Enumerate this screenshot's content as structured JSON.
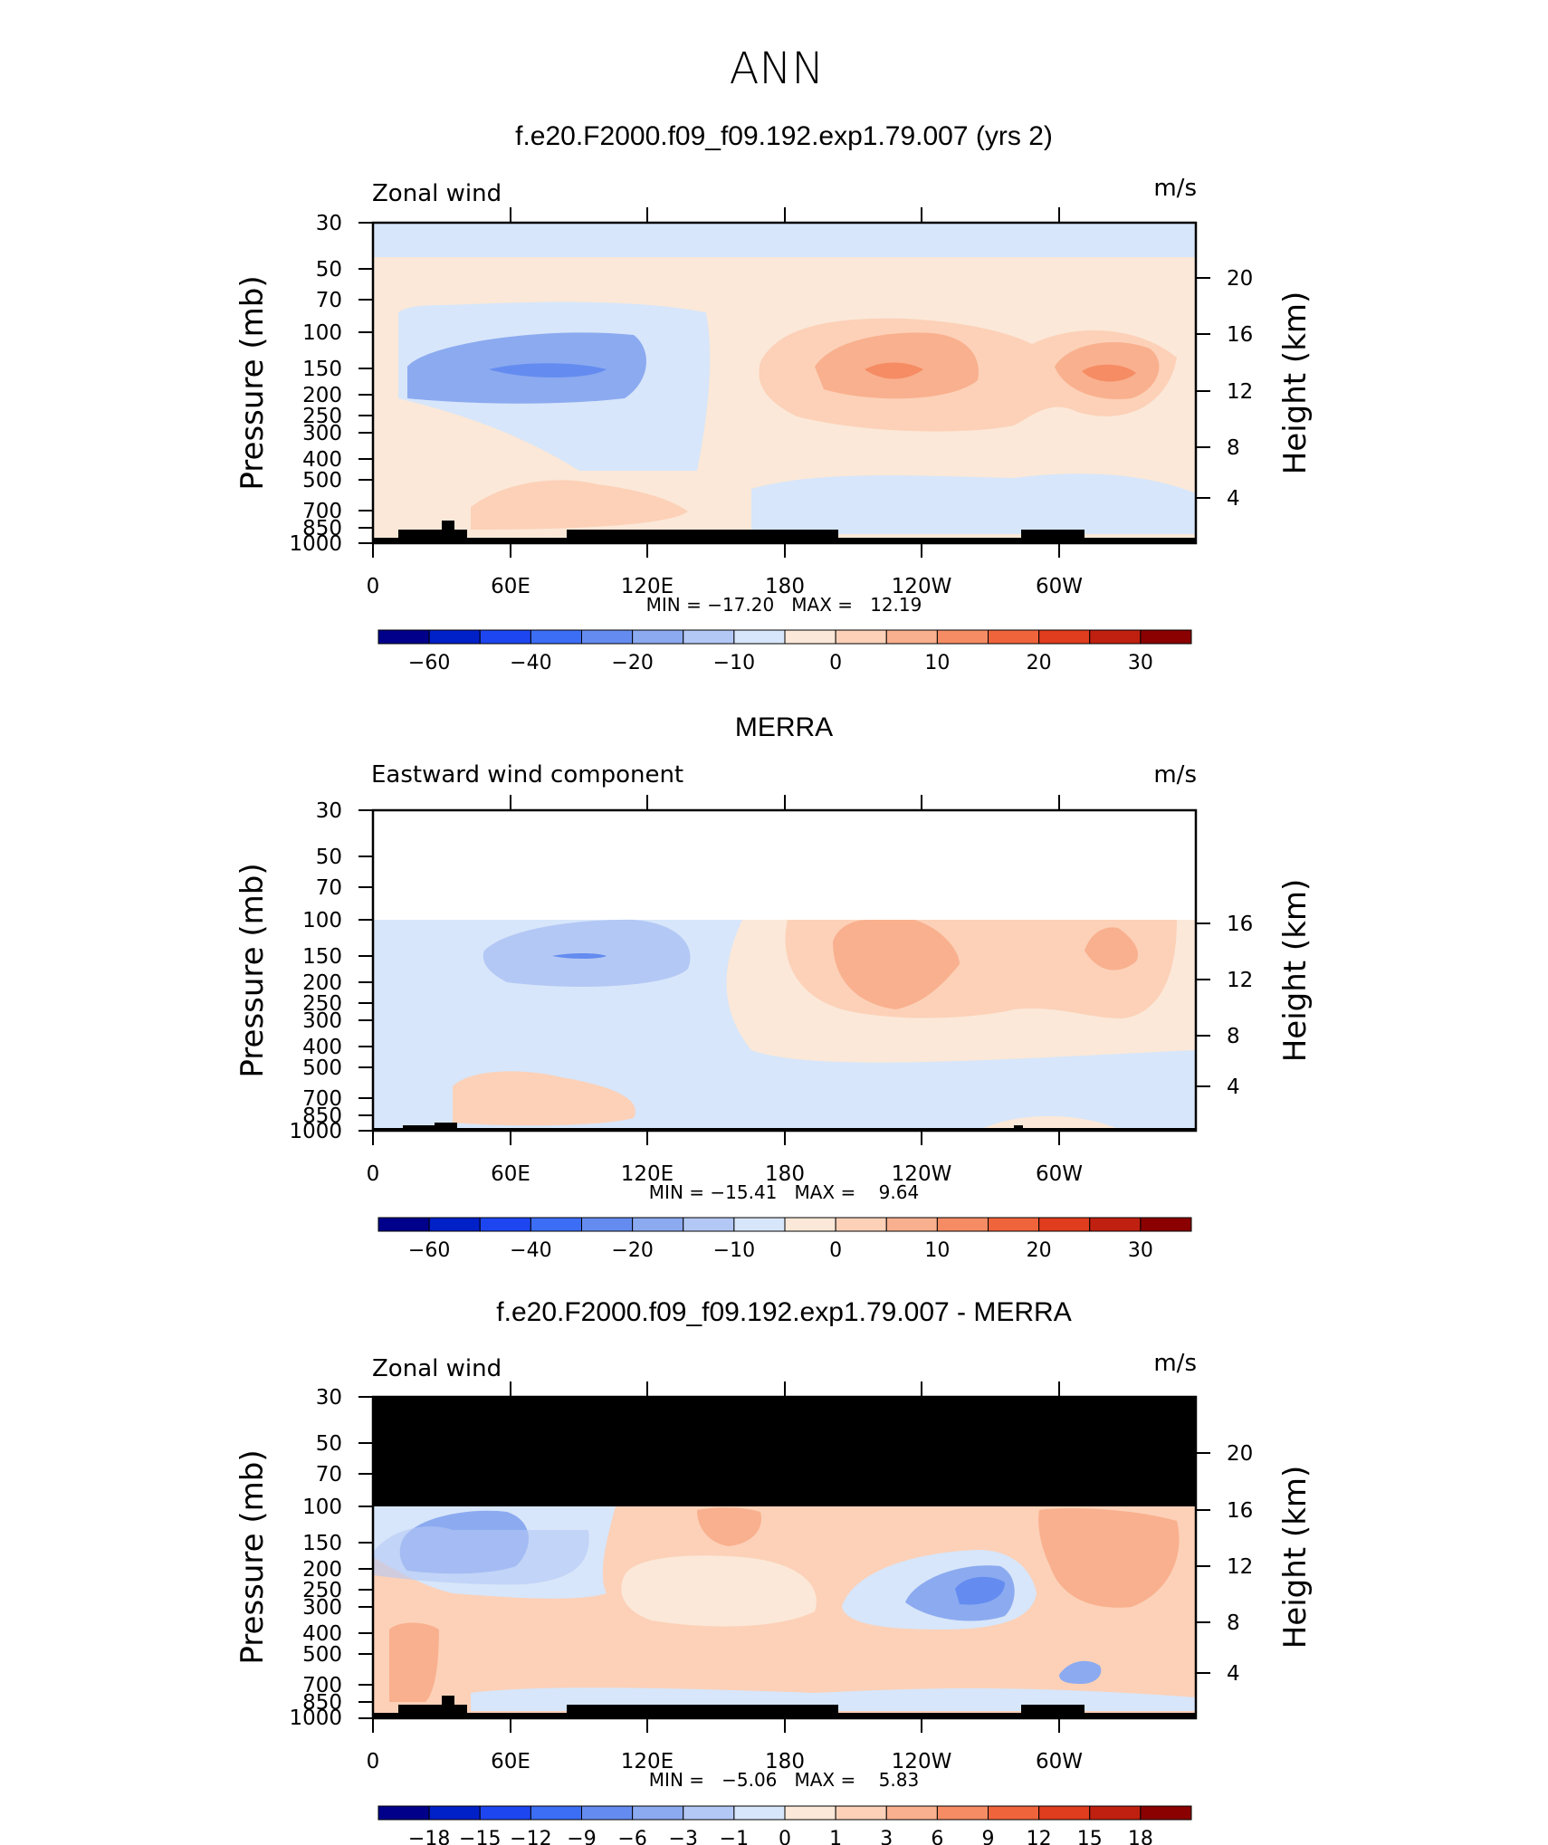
{
  "figure": {
    "main_title": "ANN"
  },
  "colors": {
    "cbar_levels": [
      "#00008b",
      "#0020c8",
      "#1e46f0",
      "#3c6ef5",
      "#648cf0",
      "#8caaf0",
      "#b4c8f5",
      "#d7e6fa",
      "#fbe8d8",
      "#fcd1b8",
      "#f9b08e",
      "#f58c64",
      "#f0643c",
      "#e03c1e",
      "#c02010",
      "#8b0000"
    ],
    "land": "#000000"
  },
  "chart_data": [
    {
      "type": "contour",
      "panel_title": "f.e20.F2000.f09_f09.192.exp1.79.007 (yrs 2)",
      "variable": "Zonal wind",
      "units": "m/s",
      "ylabel": "Pressure (mb)",
      "ylabel_right": "Height (km)",
      "pressure_ticks": [
        "30",
        "50",
        "70",
        "100",
        "150",
        "200",
        "250",
        "300",
        "400",
        "500",
        "700",
        "850",
        "1000"
      ],
      "pressure_values": [
        30,
        50,
        70,
        100,
        150,
        200,
        250,
        300,
        400,
        500,
        700,
        850,
        1000
      ],
      "height_ticks": [
        "20",
        "16",
        "12",
        "8",
        "4"
      ],
      "height_values": [
        20,
        16,
        12,
        8,
        4
      ],
      "x_ticks": [
        "0",
        "60E",
        "120E",
        "180",
        "120W",
        "60W"
      ],
      "x_values": [
        0,
        60,
        120,
        180,
        240,
        300
      ],
      "xlim": [
        0,
        360
      ],
      "ylim_mb": [
        1000,
        30
      ],
      "stats": "MIN = −17.20   MAX =   12.19",
      "min": -17.2,
      "max": 12.19,
      "colorbar_labels": [
        "−60",
        "−40",
        "−20",
        "−10",
        "0",
        "10",
        "20",
        "30"
      ],
      "colorbar_values": [
        -60,
        -40,
        -20,
        -10,
        0,
        10,
        20,
        30
      ]
    },
    {
      "type": "contour",
      "panel_title": "MERRA",
      "variable": "Eastward wind component",
      "units": "m/s",
      "ylabel": "Pressure (mb)",
      "ylabel_right": "Height (km)",
      "pressure_ticks": [
        "30",
        "50",
        "70",
        "100",
        "150",
        "200",
        "250",
        "300",
        "400",
        "500",
        "700",
        "850",
        "1000"
      ],
      "pressure_values": [
        30,
        50,
        70,
        100,
        150,
        200,
        250,
        300,
        400,
        500,
        700,
        850,
        1000
      ],
      "height_ticks": [
        "16",
        "12",
        "8",
        "4"
      ],
      "height_values": [
        16,
        12,
        8,
        4
      ],
      "x_ticks": [
        "0",
        "60E",
        "120E",
        "180",
        "120W",
        "60W"
      ],
      "x_values": [
        0,
        60,
        120,
        180,
        240,
        300
      ],
      "xlim": [
        0,
        360
      ],
      "ylim_mb": [
        1000,
        30
      ],
      "data_top_mb": 100,
      "stats": "MIN = −15.41   MAX =    9.64",
      "min": -15.41,
      "max": 9.64,
      "colorbar_labels": [
        "−60",
        "−40",
        "−20",
        "−10",
        "0",
        "10",
        "20",
        "30"
      ],
      "colorbar_values": [
        -60,
        -40,
        -20,
        -10,
        0,
        10,
        20,
        30
      ]
    },
    {
      "type": "contour",
      "panel_title": "f.e20.F2000.f09_f09.192.exp1.79.007 - MERRA",
      "variable": "Zonal wind",
      "units": "m/s",
      "ylabel": "Pressure (mb)",
      "ylabel_right": "Height (km)",
      "pressure_ticks": [
        "30",
        "50",
        "70",
        "100",
        "150",
        "200",
        "250",
        "300",
        "400",
        "500",
        "700",
        "850",
        "1000"
      ],
      "pressure_values": [
        30,
        50,
        70,
        100,
        150,
        200,
        250,
        300,
        400,
        500,
        700,
        850,
        1000
      ],
      "height_ticks": [
        "20",
        "16",
        "12",
        "8",
        "4"
      ],
      "height_values": [
        20,
        16,
        12,
        8,
        4
      ],
      "x_ticks": [
        "0",
        "60E",
        "120E",
        "180",
        "120W",
        "60W"
      ],
      "x_values": [
        0,
        60,
        120,
        180,
        240,
        300
      ],
      "xlim": [
        0,
        360
      ],
      "ylim_mb": [
        1000,
        30
      ],
      "masked_above_mb": 100,
      "stats": "MIN =   −5.06   MAX =    5.83",
      "min": -5.06,
      "max": 5.83,
      "colorbar_labels": [
        "−18",
        "−15",
        "−12",
        "−9",
        "−6",
        "−3",
        "−1",
        "0",
        "1",
        "3",
        "6",
        "9",
        "12",
        "15",
        "18"
      ],
      "colorbar_values": [
        -18,
        -15,
        -12,
        -9,
        -6,
        -3,
        -1,
        0,
        1,
        3,
        6,
        9,
        12,
        15,
        18
      ]
    }
  ]
}
